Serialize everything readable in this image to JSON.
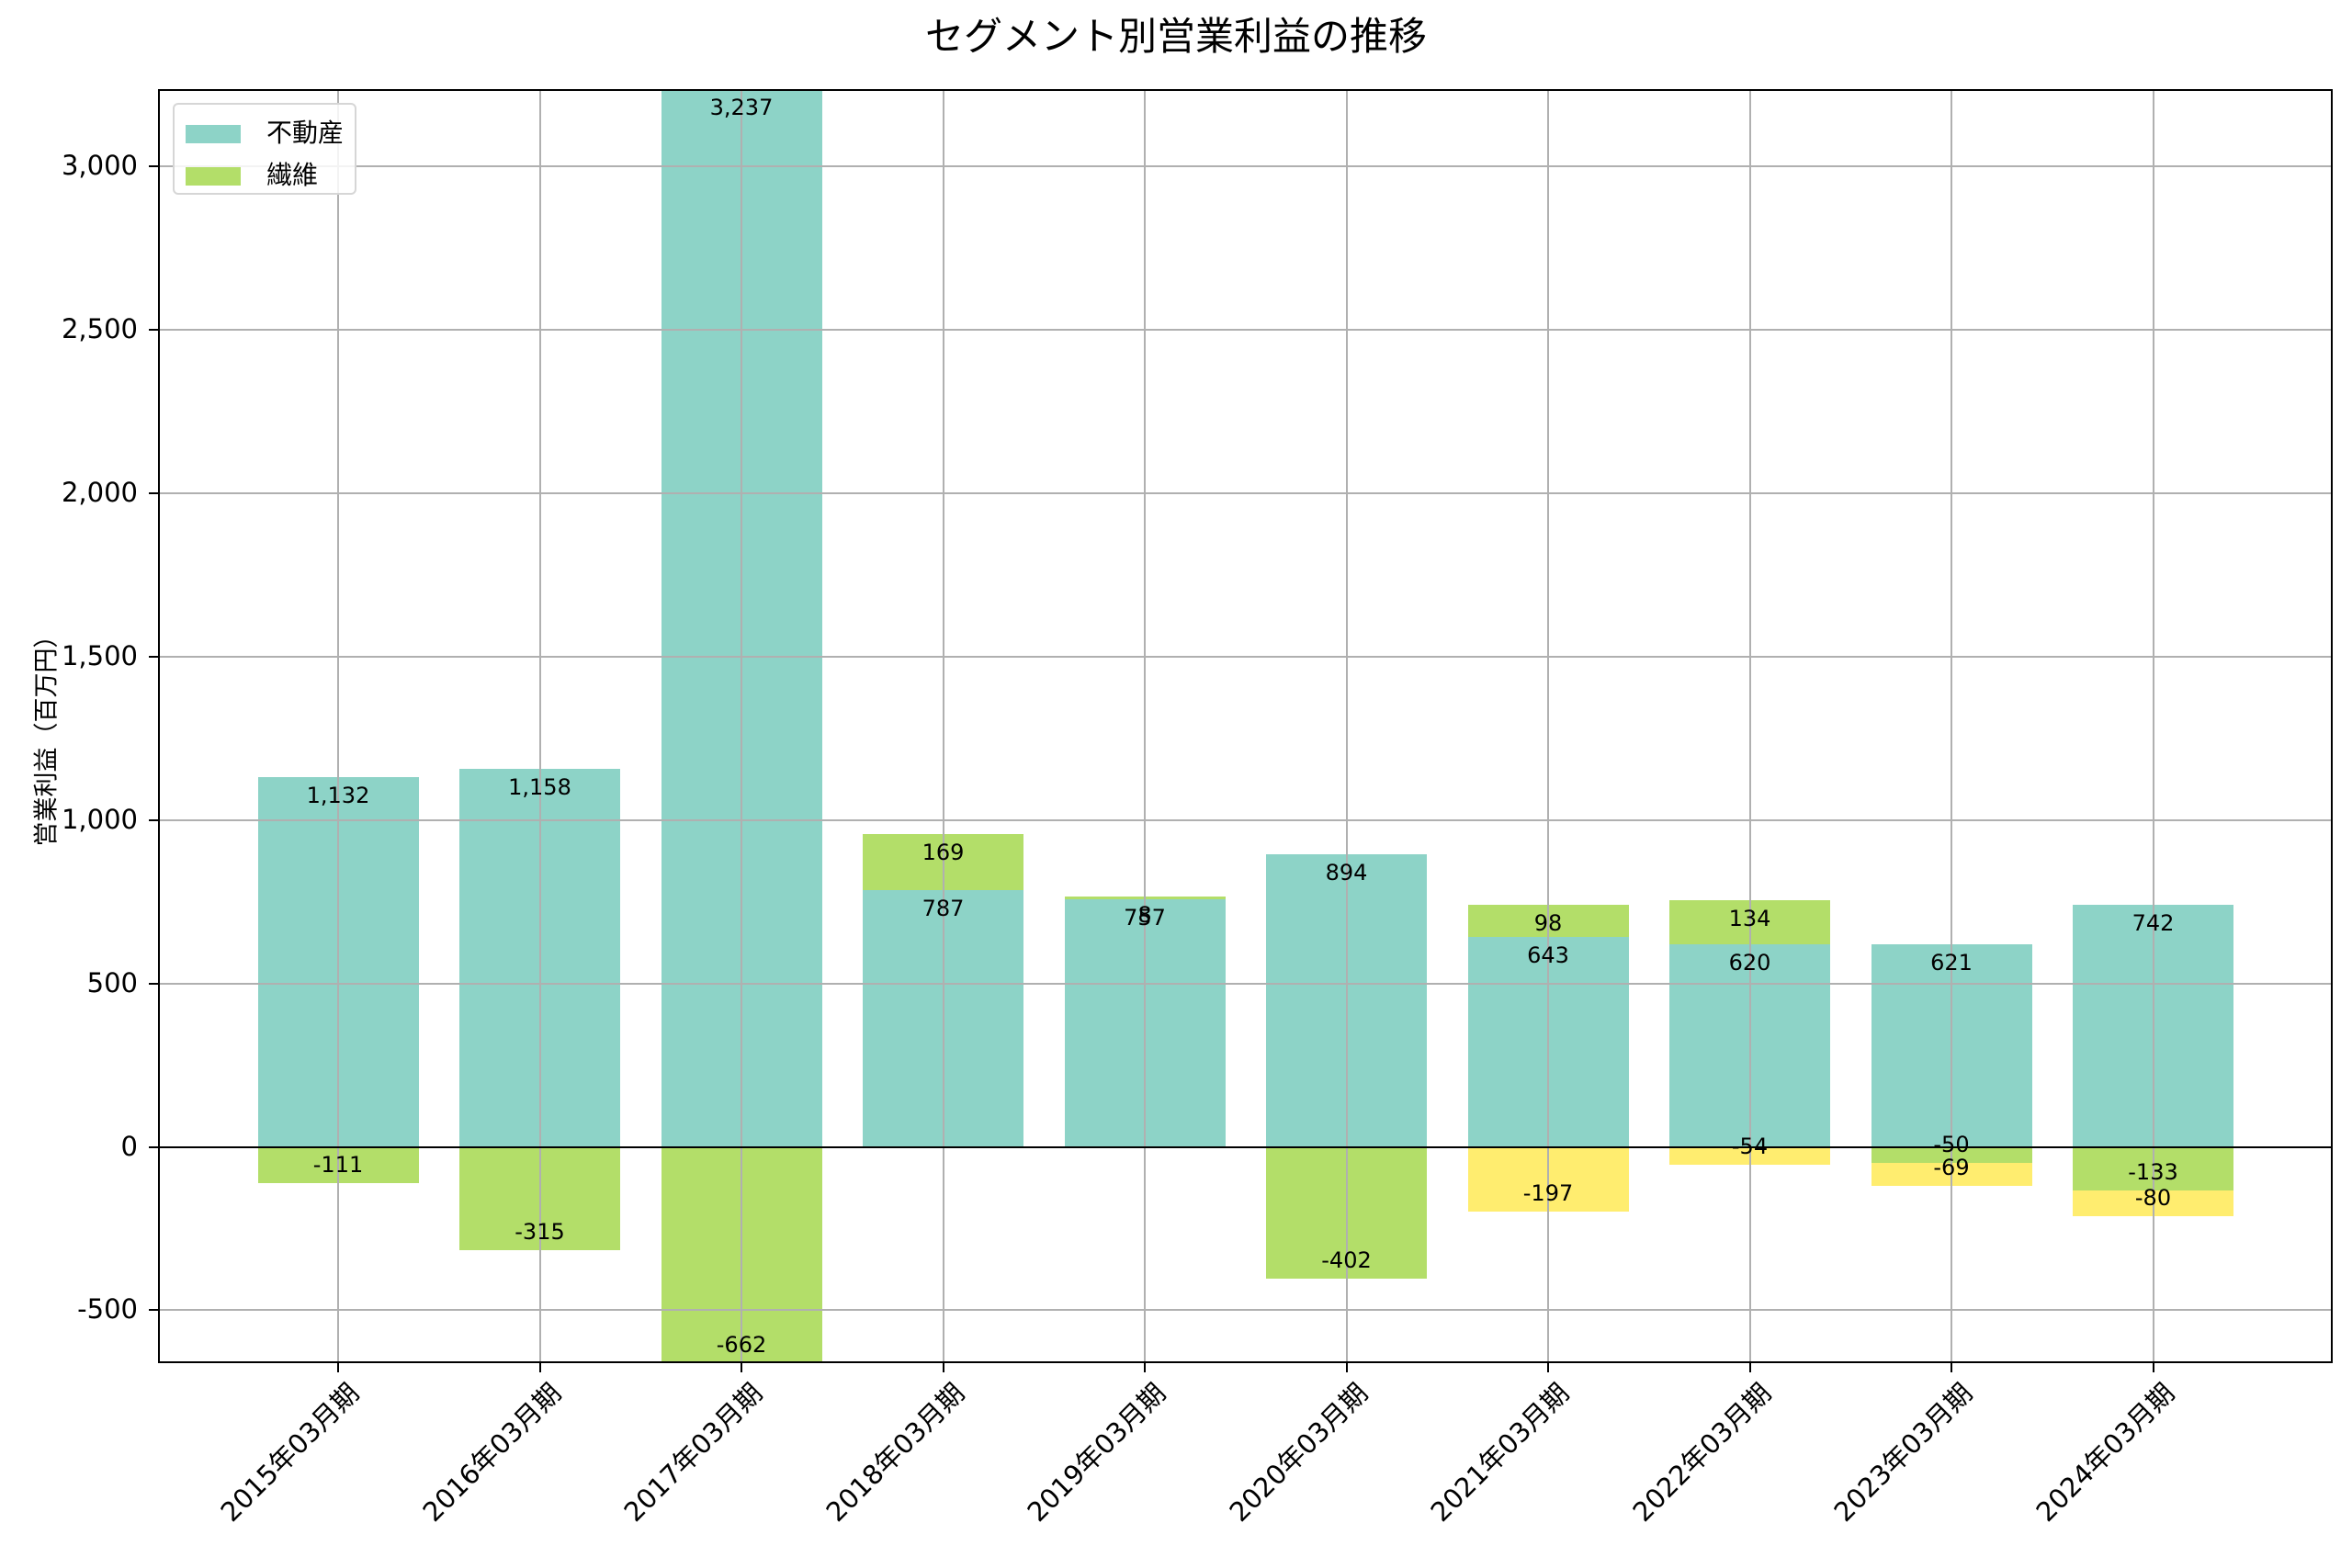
{
  "chart_data": {
    "type": "bar",
    "stacked": true,
    "title": "セグメント別営業利益の推移",
    "xlabel": "",
    "ylabel": "営業利益（百万円）",
    "ylim": [
      -662,
      3237
    ],
    "yticks": [
      -500,
      0,
      500,
      1000,
      1500,
      2000,
      2500,
      3000
    ],
    "ytick_labels": [
      "-500",
      "0",
      "500",
      "1,000",
      "1,500",
      "2,000",
      "2,500",
      "3,000"
    ],
    "grid": true,
    "legend_position": "upper left",
    "categories": [
      "2015年03月期",
      "2016年03月期",
      "2017年03月期",
      "2018年03月期",
      "2019年03月期",
      "2020年03月期",
      "2021年03月期",
      "2022年03月期",
      "2023年03月期",
      "2024年03月期"
    ],
    "series": [
      {
        "name": "不動産",
        "color": "#8dd3c7",
        "in_legend": true,
        "values": [
          1132,
          1158,
          3237,
          787,
          757,
          894,
          643,
          620,
          621,
          742
        ]
      },
      {
        "name": "繊維",
        "color": "#b3de69",
        "in_legend": true,
        "values": [
          -111,
          -315,
          -662,
          169,
          8,
          -402,
          98,
          134,
          -50,
          -133
        ]
      },
      {
        "name": "",
        "color": "#ffed6f",
        "in_legend": false,
        "values": [
          null,
          null,
          null,
          null,
          null,
          null,
          -197,
          -54,
          -69,
          -80
        ]
      }
    ],
    "data_labels": [
      [
        "1,132",
        "1,158",
        "3,237",
        "787",
        "757",
        "894",
        "643",
        "620",
        "621",
        "742"
      ],
      [
        "-111",
        "-315",
        "-662",
        "169",
        "8",
        "-402",
        "98",
        "134",
        "-50",
        "-133"
      ],
      [
        "",
        "",
        "",
        "",
        "",
        "",
        "-197",
        "-54",
        "-69",
        "-80"
      ]
    ]
  },
  "legend": {
    "items": [
      {
        "label": "不動産",
        "color": "#8dd3c7"
      },
      {
        "label": "繊維",
        "color": "#b3de69"
      }
    ]
  }
}
